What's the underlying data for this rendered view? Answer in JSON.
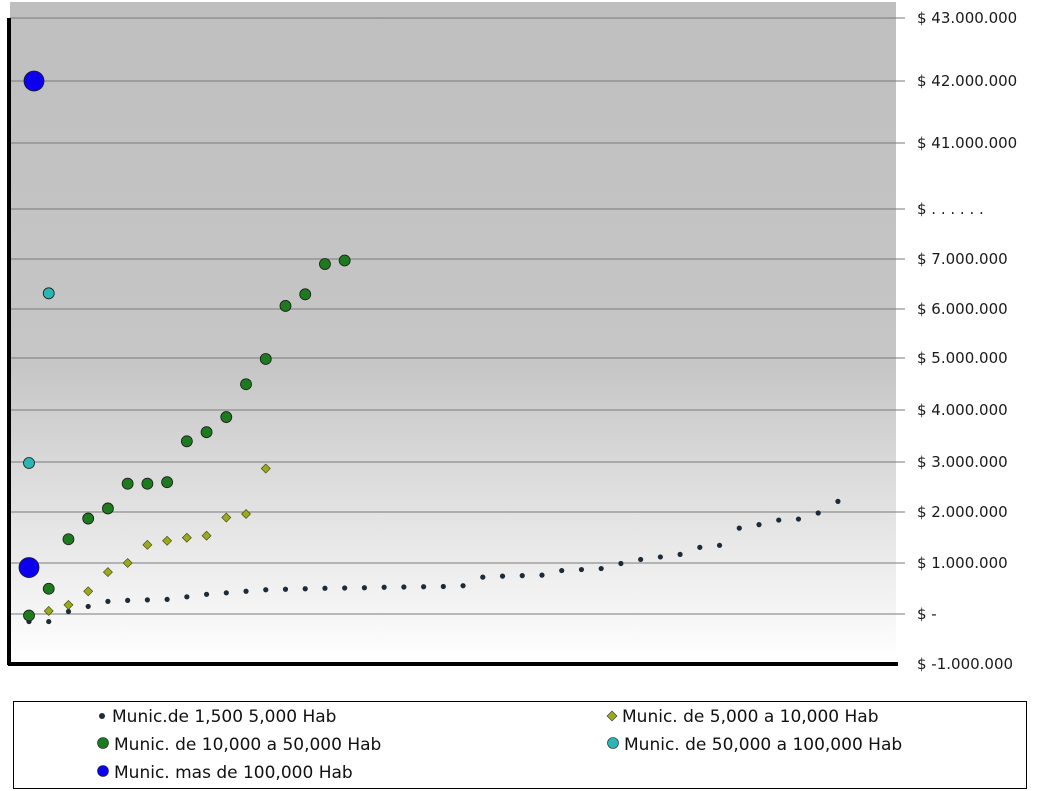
{
  "chart_data": {
    "type": "scatter",
    "title": "",
    "xlabel": "",
    "ylabel": "",
    "grid": true,
    "legend_position": "bottom",
    "y_ticks": [
      "$ 43.000.000",
      "$ 42.000.000",
      "$ 41.000.000",
      "$ . . . . . .",
      "$ 7.000.000",
      "$ 6.000.000",
      "$ 5.000.000",
      "$ 4.000.000",
      "$ 3.000.000",
      "$ 2.000.000",
      "$ 1.000.000",
      "$ -",
      "$ -1.000.000"
    ],
    "ylim": [
      -1000000,
      43000000
    ],
    "axis_break": {
      "lower_max": 8000000,
      "upper_min": 40000000
    },
    "x_note": "points are plotted by rank (index) within each series",
    "series": [
      {
        "name": "Munic.de 1,500 5,000 Hab",
        "color": "#1c2b3a",
        "marker": "dot-small",
        "points": [
          [
            1,
            -150000
          ],
          [
            2,
            -150000
          ],
          [
            3,
            50000
          ],
          [
            4,
            150000
          ],
          [
            5,
            250000
          ],
          [
            6,
            270000
          ],
          [
            7,
            280000
          ],
          [
            8,
            290000
          ],
          [
            9,
            340000
          ],
          [
            10,
            390000
          ],
          [
            11,
            420000
          ],
          [
            12,
            450000
          ],
          [
            13,
            480000
          ],
          [
            14,
            490000
          ],
          [
            15,
            500000
          ],
          [
            16,
            510000
          ],
          [
            17,
            515000
          ],
          [
            18,
            520000
          ],
          [
            19,
            530000
          ],
          [
            20,
            535000
          ],
          [
            21,
            540000
          ],
          [
            22,
            545000
          ],
          [
            23,
            560000
          ],
          [
            24,
            730000
          ],
          [
            25,
            750000
          ],
          [
            26,
            760000
          ],
          [
            27,
            770000
          ],
          [
            28,
            860000
          ],
          [
            29,
            880000
          ],
          [
            30,
            900000
          ],
          [
            31,
            1000000
          ],
          [
            32,
            1080000
          ],
          [
            33,
            1130000
          ],
          [
            34,
            1180000
          ],
          [
            35,
            1320000
          ],
          [
            36,
            1360000
          ],
          [
            37,
            1700000
          ],
          [
            38,
            1770000
          ],
          [
            39,
            1860000
          ],
          [
            40,
            1880000
          ],
          [
            41,
            2000000
          ],
          [
            42,
            2230000
          ]
        ]
      },
      {
        "name": "Munic. de 5,000 a 10,000 Hab",
        "color": "#9aaa1e",
        "marker": "diamond",
        "points": [
          [
            1,
            -10000
          ],
          [
            2,
            60000
          ],
          [
            3,
            180000
          ],
          [
            4,
            450000
          ],
          [
            5,
            830000
          ],
          [
            6,
            1010000
          ],
          [
            7,
            1370000
          ],
          [
            8,
            1450000
          ],
          [
            9,
            1510000
          ],
          [
            10,
            1550000
          ],
          [
            11,
            1910000
          ],
          [
            12,
            1980000
          ],
          [
            13,
            2880000
          ]
        ]
      },
      {
        "name": "Munic. de 10,000 a 50,000 Hab",
        "color": "#1e7a1e",
        "marker": "circle",
        "points": [
          [
            1,
            -30000
          ],
          [
            2,
            500000
          ],
          [
            3,
            1480000
          ],
          [
            4,
            1890000
          ],
          [
            5,
            2090000
          ],
          [
            6,
            2580000
          ],
          [
            7,
            2580000
          ],
          [
            8,
            2610000
          ],
          [
            9,
            3420000
          ],
          [
            10,
            3600000
          ],
          [
            11,
            3900000
          ],
          [
            12,
            4550000
          ],
          [
            13,
            5050000
          ],
          [
            14,
            6100000
          ],
          [
            15,
            6330000
          ],
          [
            16,
            6930000
          ],
          [
            17,
            7000000
          ]
        ]
      },
      {
        "name": "Munic. de 50,000 a 100,000 Hab",
        "color": "#2bb5b5",
        "marker": "circle",
        "points": [
          [
            1,
            2990000
          ],
          [
            2,
            6350000
          ]
        ]
      },
      {
        "name": "Munic.  mas de 100,000 Hab",
        "color": "#0d00ee",
        "marker": "circle-large",
        "points": [
          [
            1,
            920000
          ],
          [
            2,
            42000000
          ]
        ]
      }
    ]
  },
  "legend": [
    {
      "label": "Munic.de 1,500 5,000 Hab"
    },
    {
      "label": "Munic. de 5,000 a 10,000 Hab"
    },
    {
      "label": "Munic. de 10,000 a 50,000 Hab"
    },
    {
      "label": "Munic. de 50,000 a 100,000 Hab"
    },
    {
      "label": "Munic.  mas de 100,000 Hab"
    }
  ]
}
